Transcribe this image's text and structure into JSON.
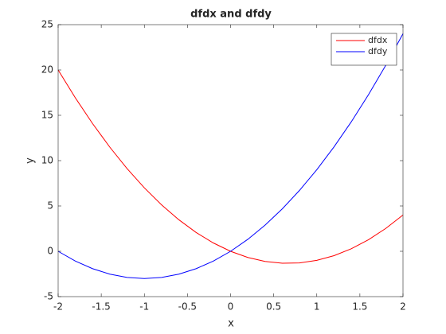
{
  "chart_data": {
    "type": "line",
    "title": "dfdx and dfdy",
    "xlabel": "x",
    "ylabel": "y",
    "x": [
      -2,
      -1.8,
      -1.6,
      -1.4,
      -1.2,
      -1,
      -0.8,
      -0.6,
      -0.4,
      -0.2,
      0,
      0.2,
      0.4,
      0.6,
      0.8,
      1,
      1.2,
      1.4,
      1.6,
      1.8,
      2
    ],
    "series": [
      {
        "name": "dfdx",
        "color": "#ff0000",
        "values": [
          20,
          16.92,
          14.08,
          11.48,
          9.12,
          7,
          5.12,
          3.48,
          2.08,
          0.92,
          0,
          -0.68,
          -1.12,
          -1.32,
          -1.28,
          -1,
          -0.48,
          0.28,
          1.28,
          2.52,
          4
        ]
      },
      {
        "name": "dfdy",
        "color": "#0000ff",
        "values": [
          0,
          -1.08,
          -1.92,
          -2.52,
          -2.88,
          -3,
          -2.88,
          -2.52,
          -1.92,
          -1.08,
          0,
          1.32,
          2.88,
          4.68,
          6.72,
          9,
          11.52,
          14.28,
          17.28,
          20.52,
          24
        ]
      }
    ],
    "xlim": [
      -2,
      2
    ],
    "xticks": [
      -2,
      -1.5,
      -1,
      -0.5,
      0,
      0.5,
      1,
      1.5,
      2
    ],
    "ylim": [
      -5,
      25
    ],
    "yticks": [
      -5,
      0,
      5,
      10,
      15,
      20,
      25
    ],
    "legend": "upper right"
  }
}
